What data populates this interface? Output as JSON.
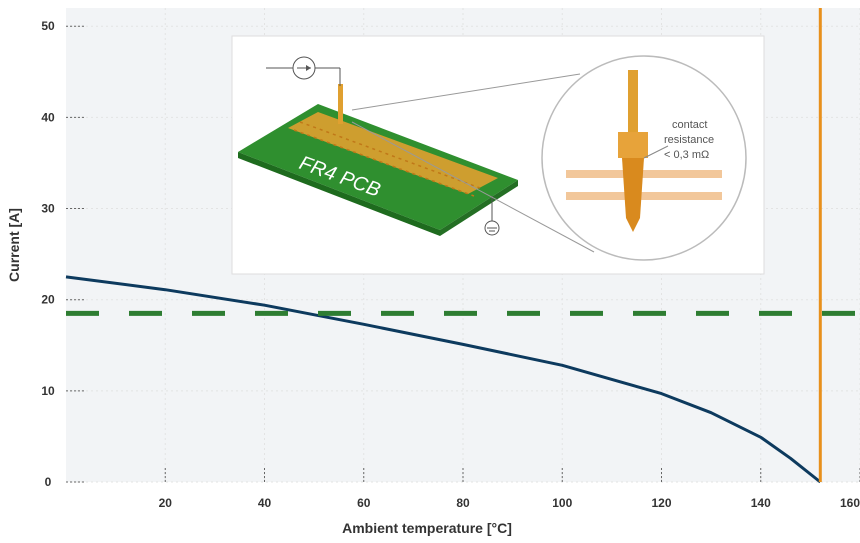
{
  "chart_data": {
    "type": "line",
    "xlabel": "Ambient temperature [°C]",
    "ylabel": "Current  [A]",
    "xlim": [
      0,
      160
    ],
    "ylim": [
      0,
      52
    ],
    "x_ticks": [
      20,
      40,
      60,
      80,
      100,
      120,
      140,
      160
    ],
    "y_ticks": [
      0,
      10,
      20,
      30,
      40,
      50
    ],
    "grid": true,
    "series": [
      {
        "style": "solid",
        "color": "#0d3a5e",
        "x": [
          0,
          20,
          40,
          60,
          80,
          100,
          120,
          130,
          140,
          146,
          152
        ],
        "y": [
          22.5,
          21.1,
          19.4,
          17.3,
          15.1,
          12.8,
          9.7,
          7.6,
          4.9,
          2.6,
          0
        ]
      },
      {
        "style": "dashed",
        "color": "#2e7d32",
        "x": [
          0,
          160
        ],
        "y": [
          18.5,
          18.5
        ]
      }
    ],
    "vertical_lines": [
      {
        "x": 152,
        "color": "#e8901c"
      }
    ]
  },
  "inset": {
    "pcb_label": "FR4 PCB",
    "callout_line1": "contact",
    "callout_line2": "resistance",
    "callout_line3": "< 0,3 mΩ"
  }
}
